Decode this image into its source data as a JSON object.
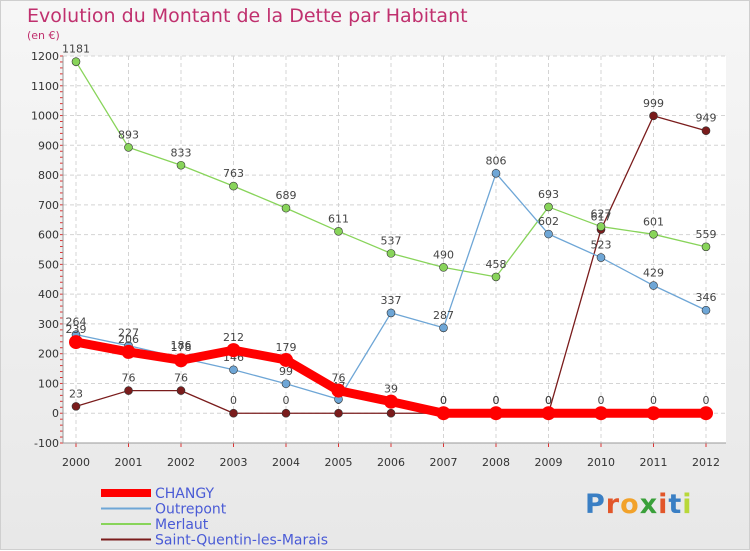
{
  "title": "Evolution du Montant de la Dette par Habitant",
  "subtitle": "(en €)",
  "logo": {
    "text": "Proxiti",
    "colors": [
      "#3a7fc4",
      "#e2562a",
      "#f2a22a",
      "#3aa03a",
      "#e2562a",
      "#3a7fc4",
      "#b8d83a"
    ]
  },
  "chart_data": {
    "type": "line",
    "x": [
      "2000",
      "2001",
      "2002",
      "2003",
      "2004",
      "2005",
      "2006",
      "2007",
      "2008",
      "2009",
      "2010",
      "2011",
      "2012"
    ],
    "ylim": [
      -100,
      1200
    ],
    "yticks": [
      -100,
      0,
      100,
      200,
      300,
      400,
      500,
      600,
      700,
      800,
      900,
      1000,
      1100,
      1200
    ],
    "grid": true,
    "legend_position": "bottom-left",
    "series": [
      {
        "name": "Saint-Quentin-les-Marais",
        "color": "#7a1c1c",
        "width": 1.3,
        "marker": 4,
        "values": [
          23,
          76,
          76,
          0,
          0,
          0,
          0,
          0,
          0,
          0,
          617,
          999,
          949
        ]
      },
      {
        "name": "Merlaut",
        "color": "#88d45a",
        "width": 1.3,
        "marker": 4,
        "values": [
          1181,
          893,
          833,
          763,
          689,
          611,
          537,
          490,
          458,
          693,
          627,
          601,
          559
        ]
      },
      {
        "name": "Outrepont",
        "color": "#6ea6d6",
        "width": 1.3,
        "marker": 4,
        "values": [
          264,
          227,
          186,
          146,
          99,
          47,
          337,
          287,
          806,
          602,
          523,
          429,
          346
        ]
      },
      {
        "name": "CHANGY",
        "color": "#ff0000",
        "width": 9,
        "marker": 7,
        "values": [
          239,
          206,
          178,
          212,
          179,
          76,
          39,
          0,
          0,
          0,
          0,
          0,
          0
        ]
      }
    ]
  }
}
